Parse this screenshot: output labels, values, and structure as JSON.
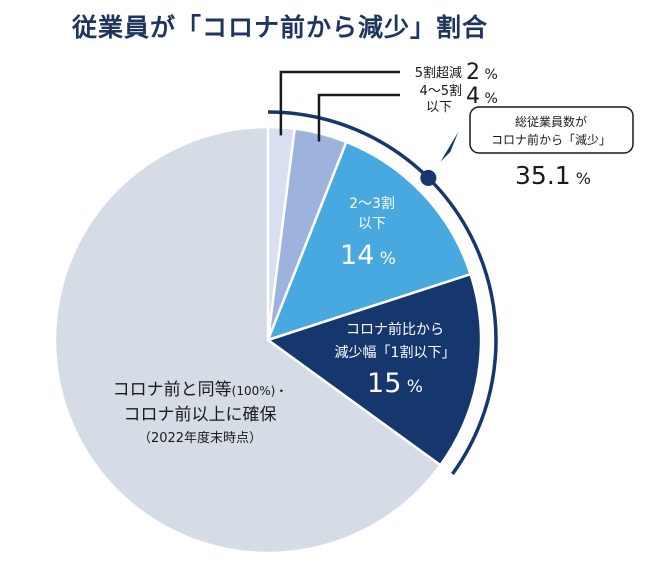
{
  "chart_data": {
    "type": "pie",
    "title": "従業員が「コロナ前から減少」割合",
    "slices": [
      {
        "label": "5割超減",
        "value": 2,
        "value_text": "2",
        "unit": "%",
        "color": "#d8dff0"
      },
      {
        "label": "4～5割 以下",
        "line1": "4～5割",
        "line2": "以下",
        "value": 4,
        "value_text": "4",
        "unit": "%",
        "color": "#9eb2de"
      },
      {
        "label": "2～3割 以下",
        "line1": "2～3割",
        "line2": "以下",
        "value": 14,
        "value_text": "14",
        "unit": "%",
        "color": "#48a8e0"
      },
      {
        "label": "コロナ前比から 減少幅「1割以下」",
        "line1": "コロナ前比から",
        "line2": "減少幅「1割以下」",
        "value": 15,
        "value_text": "15",
        "unit": "%",
        "color": "#16366e"
      },
      {
        "label": "コロナ前と同等(100%)・コロナ前以上に確保 (2022年度末時点)",
        "line1": "コロナ前と同等",
        "line1_small": "(100%)・",
        "line2": "コロナ前以上に確保",
        "line3": "（2022年度末時点）",
        "value": 65,
        "color": "#d6dce6"
      }
    ],
    "callout": {
      "line1": "総従業員数が",
      "line2": "コロナ前から「減少」",
      "value_text": "35.1",
      "unit": "%"
    },
    "colors": {
      "title": "#1e3560",
      "accent": "#16366e",
      "text": "#1a1a1a"
    }
  }
}
